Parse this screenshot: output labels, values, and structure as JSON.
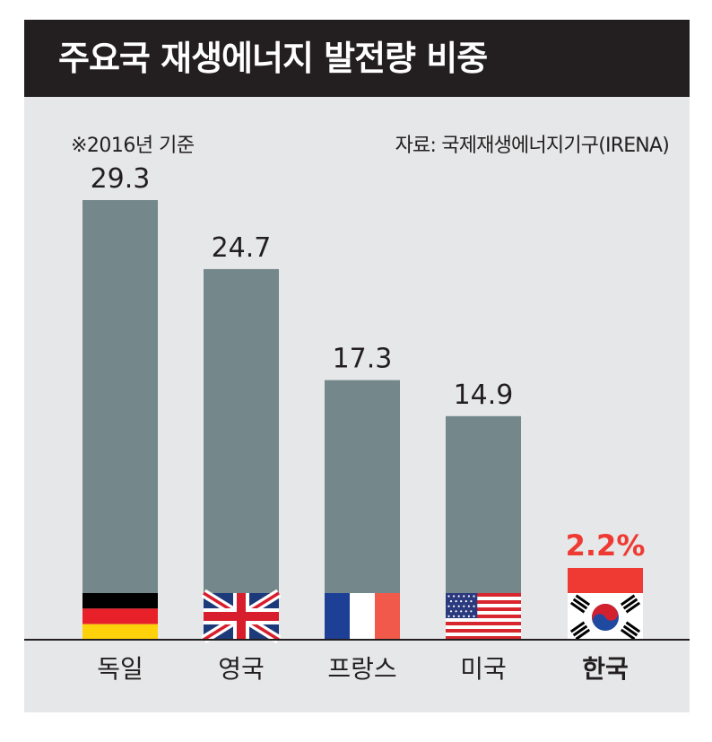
{
  "header": {
    "title": "주요국 재생에너지 발전량 비중"
  },
  "notes": {
    "basis": "※2016년 기준",
    "source": "자료: 국제재생에너지기구(IRENA)"
  },
  "colors": {
    "bar": "#74878b",
    "highlight": "#ee3a32",
    "text": "#231f20",
    "title_bg": "#231f20",
    "panel_bg": "#e6e7e8"
  },
  "chart_data": {
    "type": "bar",
    "title": "주요국 재생에너지 발전량 비중",
    "categories": [
      "독일",
      "영국",
      "프랑스",
      "미국",
      "한국"
    ],
    "values": [
      29.3,
      24.7,
      17.3,
      14.9,
      2.2
    ],
    "value_labels": [
      "29.3",
      "24.7",
      "17.3",
      "14.9",
      "2.2%"
    ],
    "highlight_index": 4,
    "flags": [
      "germany-flag-icon",
      "uk-flag-icon",
      "france-flag-icon",
      "usa-flag-icon",
      "korea-flag-icon"
    ],
    "ylim": [
      0,
      29.3
    ],
    "grid": false,
    "legend": "none"
  }
}
